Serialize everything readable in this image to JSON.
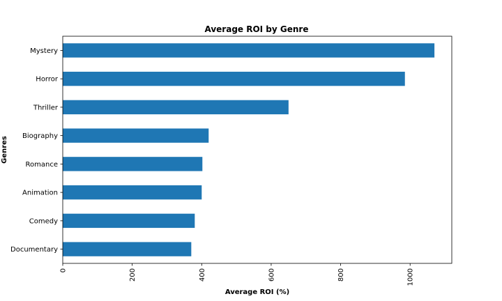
{
  "chart_data": {
    "type": "bar",
    "orientation": "horizontal",
    "title": "Average ROI by Genre",
    "xlabel": "Average ROI (%)",
    "ylabel": "Genres",
    "categories": [
      "Mystery",
      "Horror",
      "Thriller",
      "Biography",
      "Romance",
      "Animation",
      "Comedy",
      "Documentary"
    ],
    "values": [
      1070,
      985,
      650,
      420,
      402,
      400,
      380,
      370
    ],
    "xlim": [
      0,
      1120
    ],
    "xticks": [
      0,
      200,
      400,
      600,
      800,
      1000
    ],
    "xtick_rotation": 90,
    "grid": false,
    "bar_color": "#1f77b4"
  }
}
